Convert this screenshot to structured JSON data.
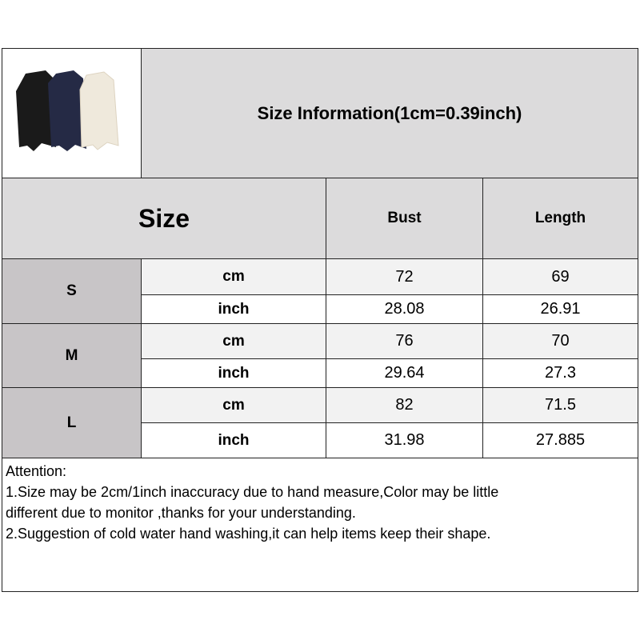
{
  "title": "Size Information(1cm=0.39inch)",
  "product_image": {
    "icon": "bodysuit-product-photo",
    "colors": [
      "#1a1a1a",
      "#252a45",
      "#efe9dc"
    ]
  },
  "header": {
    "size": "Size",
    "columns": [
      "Bust",
      "Length"
    ]
  },
  "rows": [
    {
      "size": "S",
      "cm_label": "cm",
      "inch_label": "inch",
      "cm": [
        "72",
        "69"
      ],
      "inch": [
        "28.08",
        "26.91"
      ]
    },
    {
      "size": "M",
      "cm_label": "cm",
      "inch_label": "inch",
      "cm": [
        "76",
        "70"
      ],
      "inch": [
        "29.64",
        "27.3"
      ]
    },
    {
      "size": "L",
      "cm_label": "cm",
      "inch_label": "inch",
      "cm": [
        "82",
        "71.5"
      ],
      "inch": [
        "31.98",
        "27.885"
      ]
    }
  ],
  "notes": {
    "heading": "Attention:",
    "lines": [
      "1.Size may be 2cm/1inch inaccuracy due to hand measure,Color may be little",
      "different due to monitor ,thanks for your understanding.",
      "2.Suggestion of cold water hand washing,it can help items keep their shape."
    ]
  }
}
